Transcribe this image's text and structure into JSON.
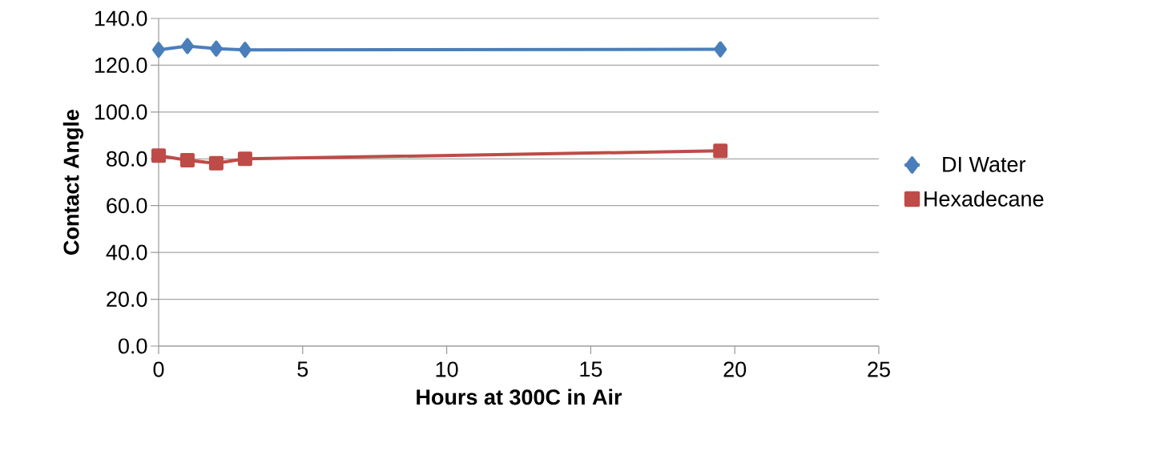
{
  "chart_data": {
    "type": "line",
    "xlabel": "Hours at 300C in Air",
    "ylabel": "Contact Angle",
    "x": [
      0,
      1,
      2,
      3,
      19.5
    ],
    "series": [
      {
        "name": "DI Water",
        "color": "#4a7ebb",
        "marker": "diamond",
        "values": [
          126.6,
          128.2,
          127.1,
          126.6,
          126.8
        ]
      },
      {
        "name": "Hexadecane",
        "color": "#be4b48",
        "marker": "square",
        "values": [
          81.4,
          79.4,
          78.1,
          80.0,
          83.4
        ]
      }
    ],
    "xlim": [
      0,
      25
    ],
    "xticks": [
      0,
      5,
      10,
      15,
      20,
      25
    ],
    "ylim": [
      0,
      140
    ],
    "yticks": [
      {
        "value": 0,
        "label": "0.0"
      },
      {
        "value": 20,
        "label": "20.0"
      },
      {
        "value": 40,
        "label": "40.0"
      },
      {
        "value": 60,
        "label": "60.0"
      },
      {
        "value": 80,
        "label": "80.0"
      },
      {
        "value": 100,
        "label": "100.0"
      },
      {
        "value": 120,
        "label": "120.0"
      },
      {
        "value": 140,
        "label": "140.0"
      }
    ],
    "grid": "y",
    "legend": "right",
    "line_style": "solid"
  }
}
